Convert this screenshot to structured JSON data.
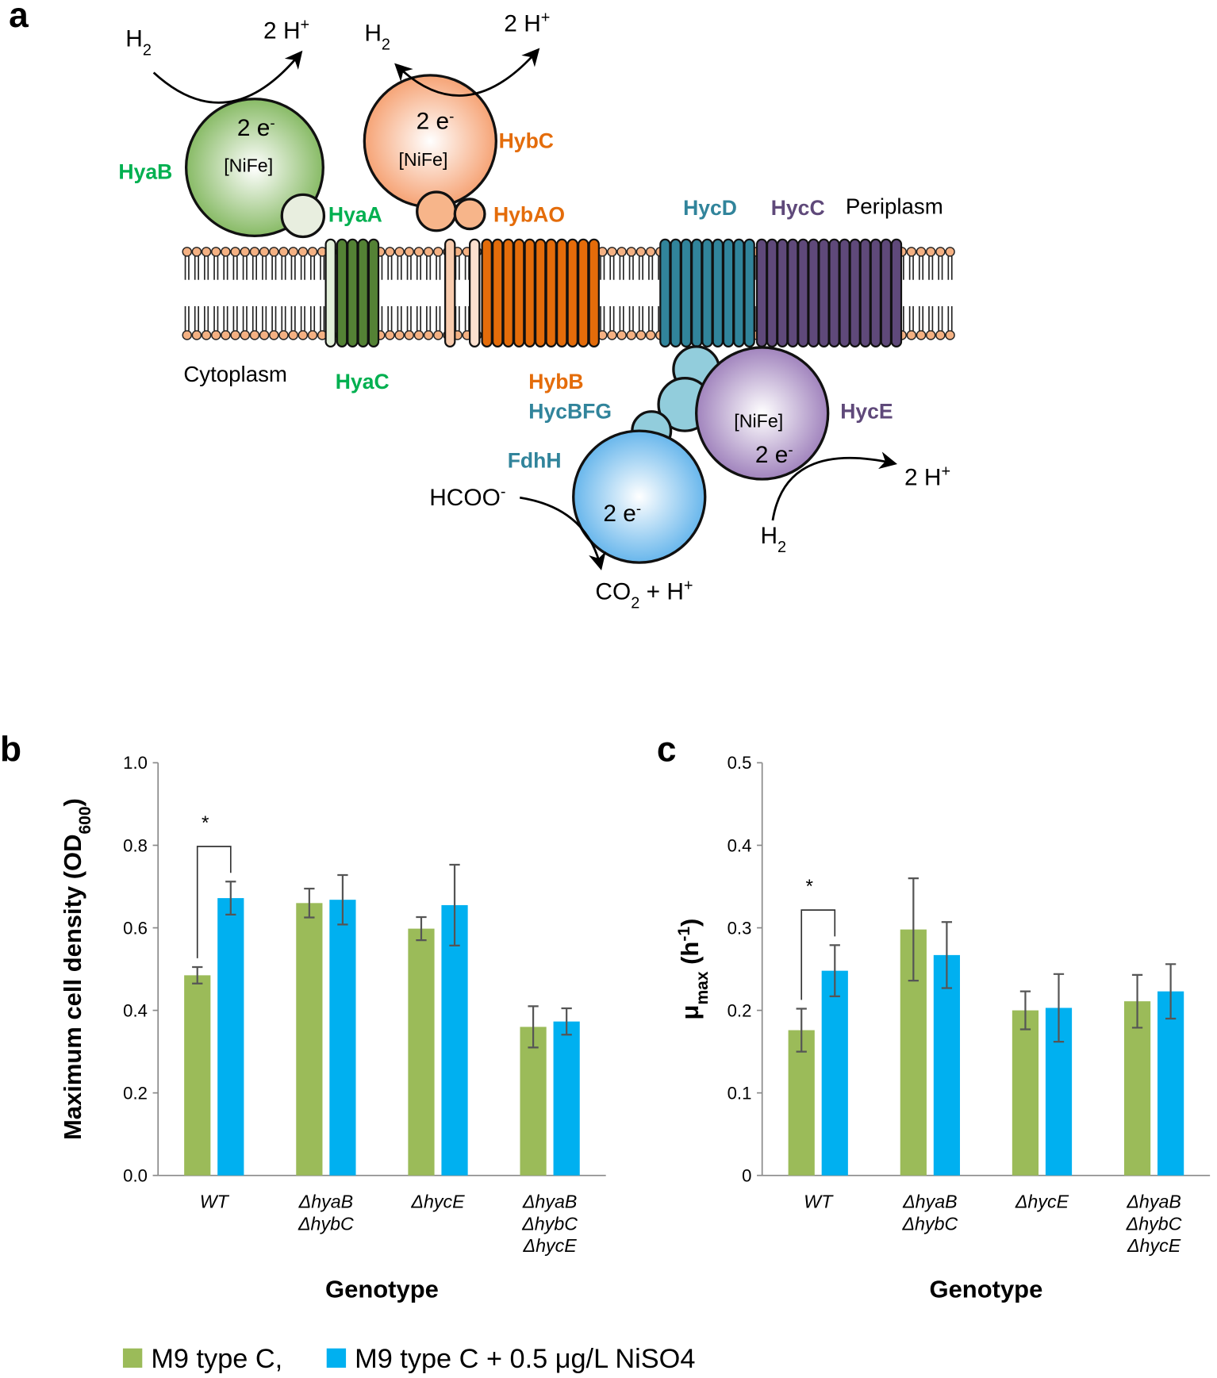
{
  "panel_labels": [
    "a",
    "b",
    "c"
  ],
  "diagram": {
    "hyab": "HyaB",
    "hyaa": "HyaA",
    "hybc": "HybC",
    "hybao": "HybAO",
    "hycd": "HycD",
    "hycc": "HycC",
    "periplasm": "Periplasm",
    "cytoplasm": "Cytoplasm",
    "hyac": "HyaC",
    "hybb": "HybB",
    "hycbfg": "HycBFG",
    "hyce": "HycE",
    "fdhh": "FdhH",
    "nife_1": "[NiFe]",
    "nife_2": "[NiFe]",
    "nife_3": "[NiFe]",
    "e_1": [
      "2 e",
      "-"
    ],
    "e_2": [
      "2 e",
      "-"
    ],
    "e_3": [
      "2 e",
      "-"
    ],
    "e_4": [
      "2 e",
      "-"
    ],
    "h2_1": [
      "H",
      "2"
    ],
    "h2_2": [
      "H",
      "2"
    ],
    "h2_3": [
      "H",
      "2"
    ],
    "hplus_1": [
      "2 H",
      "+"
    ],
    "hplus_2": [
      "2 H",
      "+"
    ],
    "hplus_3": [
      "2 H",
      "+"
    ],
    "formate": [
      "HCOO",
      "-"
    ],
    "co2": [
      "CO",
      "2",
      " + H",
      "+"
    ]
  },
  "chart_data": [
    {
      "type": "bar",
      "ylabel": [
        {
          "text": "Maximum cell density (OD"
        },
        {
          "text": "600",
          "shift": "sub"
        },
        {
          "text": ")"
        }
      ],
      "xlabel": "Genotype",
      "categories": [
        "WT",
        "ΔhyaB ΔhybC",
        "ΔhycE",
        "ΔhyaB ΔhybC ΔhycE"
      ],
      "series": [
        {
          "name": "M9 type C,",
          "color": "#9bbb59",
          "values": [
            0.485,
            0.66,
            0.598,
            0.36
          ],
          "errors": [
            0.02,
            0.035,
            0.028,
            0.05
          ]
        },
        {
          "name": "M9 type C + 0.5 μg/L NiSO4",
          "color": "#00b0f0",
          "values": [
            0.672,
            0.668,
            0.655,
            0.373
          ],
          "errors": [
            0.04,
            0.06,
            0.098,
            0.032
          ]
        }
      ],
      "ylim": [
        0,
        1
      ],
      "yticks": [
        {
          "value": 0,
          "label": "0.0"
        },
        0.2,
        0.4,
        0.6,
        0.8,
        {
          "value": 1,
          "label": "1.0"
        }
      ],
      "annotation": "*"
    },
    {
      "type": "bar",
      "ylabel": [
        {
          "text": "μ"
        },
        {
          "text": "max",
          "shift": "sub"
        },
        {
          "text": " (h"
        },
        {
          "text": "-1",
          "shift": "super"
        },
        {
          "text": ")"
        }
      ],
      "xlabel": "Genotype",
      "categories": [
        "WT",
        "ΔhyaB ΔhybC",
        "ΔhycE",
        "ΔhyaB ΔhybC ΔhycE"
      ],
      "series": [
        {
          "color": "#9bbb59",
          "values": [
            0.176,
            0.298,
            0.2,
            0.211
          ],
          "errors": [
            0.026,
            0.062,
            0.023,
            0.032
          ]
        },
        {
          "color": "#00b0f0",
          "values": [
            0.248,
            0.267,
            0.203,
            0.223
          ],
          "errors": [
            0.031,
            0.04,
            0.041,
            0.033
          ]
        }
      ],
      "ylim": [
        0,
        0.5
      ],
      "yticks": [
        0,
        0.1,
        0.2,
        0.3,
        0.4,
        0.5
      ],
      "annotation": "*"
    }
  ]
}
